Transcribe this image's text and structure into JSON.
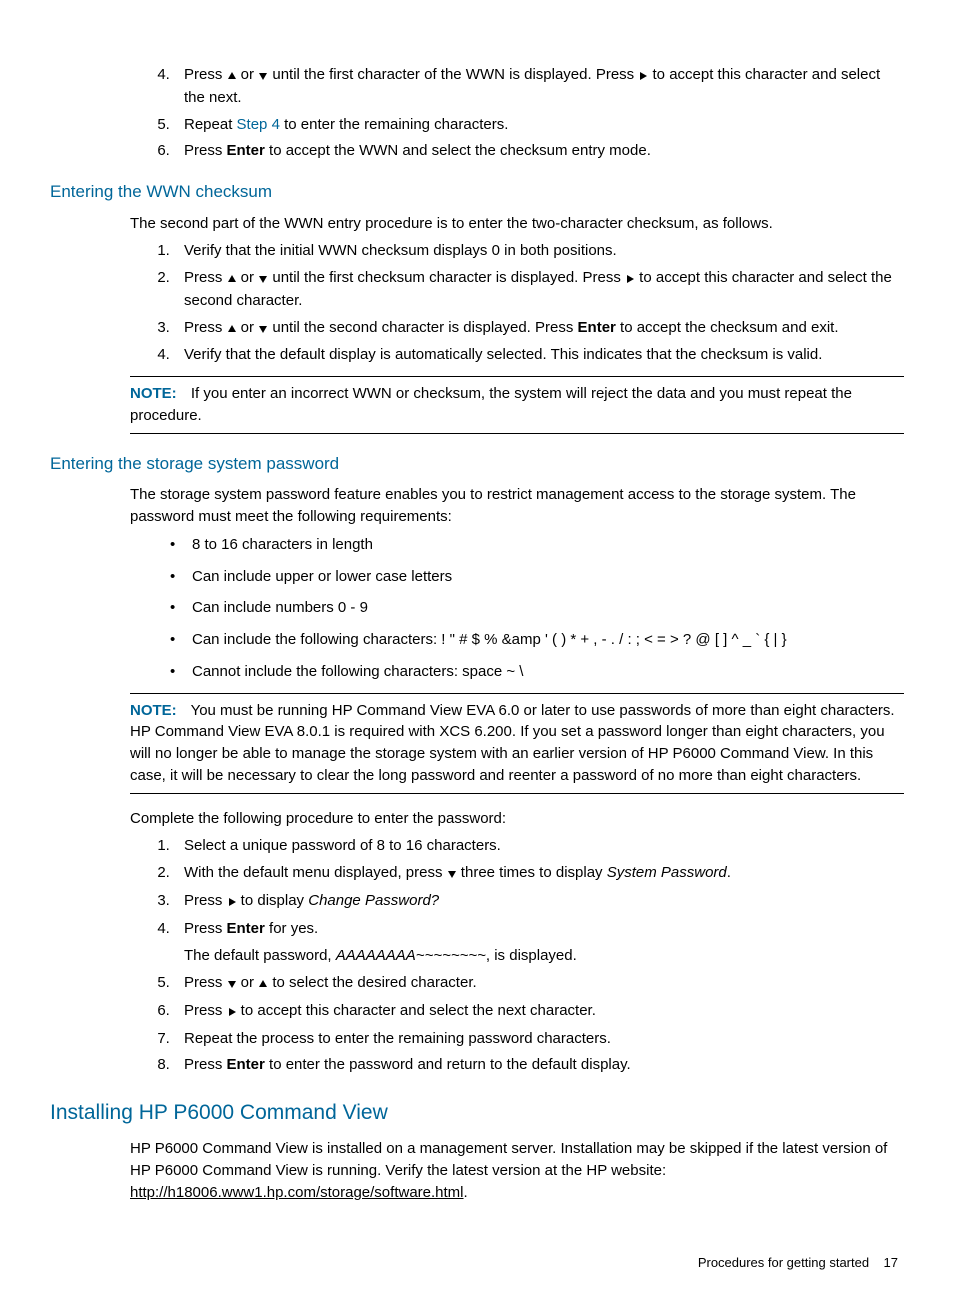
{
  "colors": {
    "heading": "#006699",
    "text": "#000000",
    "background": "#ffffff"
  },
  "icons": {
    "up": "▲",
    "down": "▼",
    "right": "▶"
  },
  "top_steps": {
    "start": 4,
    "items": [
      {
        "parts": [
          {
            "t": "Press "
          },
          {
            "icon": "up"
          },
          {
            "t": " or "
          },
          {
            "icon": "down"
          },
          {
            "t": " until the first character of the WWN is displayed. Press "
          },
          {
            "icon": "right"
          },
          {
            "t": " to accept this character and select the next."
          }
        ]
      },
      {
        "parts": [
          {
            "t": "Repeat "
          },
          {
            "link": "Step 4",
            "cls": "step-link"
          },
          {
            "t": " to enter the remaining characters."
          }
        ]
      },
      {
        "parts": [
          {
            "t": "Press "
          },
          {
            "b": "Enter"
          },
          {
            "t": " to accept the WWN and select the checksum entry mode."
          }
        ]
      }
    ]
  },
  "wwn": {
    "heading": "Entering the WWN checksum",
    "intro": "The second part of the WWN entry procedure is to enter the two-character checksum, as follows.",
    "steps": [
      {
        "parts": [
          {
            "t": "Verify that the initial WWN checksum displays 0 in both positions."
          }
        ]
      },
      {
        "parts": [
          {
            "t": "Press "
          },
          {
            "icon": "up"
          },
          {
            "t": " or "
          },
          {
            "icon": "down"
          },
          {
            "t": " until the first checksum character is displayed. Press "
          },
          {
            "icon": "right"
          },
          {
            "t": " to accept this character and select the second character."
          }
        ]
      },
      {
        "parts": [
          {
            "t": "Press "
          },
          {
            "icon": "up"
          },
          {
            "t": " or "
          },
          {
            "icon": "down"
          },
          {
            "t": " until the second character is displayed. Press "
          },
          {
            "b": "Enter"
          },
          {
            "t": " to accept the checksum and exit."
          }
        ]
      },
      {
        "parts": [
          {
            "t": "Verify that the default display is automatically selected. This indicates that the checksum is valid."
          }
        ]
      }
    ],
    "note": "If you enter an incorrect WWN or checksum, the system will reject the data and you must repeat the procedure."
  },
  "pwd": {
    "heading": "Entering the storage system password",
    "intro": "The storage system password feature enables you to restrict management access to the storage system. The password must meet the following requirements:",
    "bullets": [
      "8 to 16 characters in length",
      "Can include upper or lower case letters",
      "Can include numbers 0 - 9",
      "Can include the following characters: ! \" # $ % &amp ' ( ) * + , - . / : ; < = > ? @ [ ] ^ _ ` { | }",
      "Cannot include the following characters: space ~ \\"
    ],
    "note": "You must be running HP Command View EVA 6.0 or later to use passwords of more than eight characters. HP Command View EVA 8.0.1 is required with XCS 6.200. If you set a password longer than eight characters, you will no longer be able to manage the storage system with an earlier version of HP P6000 Command View. In this case, it will be necessary to clear the long password and reenter a password of no more than eight characters.",
    "proc_intro": "Complete the following procedure to enter the password:",
    "steps": [
      {
        "parts": [
          {
            "t": "Select a unique password of 8 to 16 characters."
          }
        ]
      },
      {
        "parts": [
          {
            "t": "With the default menu displayed, press "
          },
          {
            "icon": "down"
          },
          {
            "t": " three times to display "
          },
          {
            "i": "System Password"
          },
          {
            "t": "."
          }
        ]
      },
      {
        "parts": [
          {
            "t": "Press "
          },
          {
            "icon": "right"
          },
          {
            "t": " to display "
          },
          {
            "i": "Change Password?"
          }
        ]
      },
      {
        "parts": [
          {
            "t": "Press "
          },
          {
            "b": "Enter"
          },
          {
            "t": " for yes."
          }
        ],
        "after": [
          {
            "t": "The default password, "
          },
          {
            "i": "AAAAAAAA~~~~~~~~"
          },
          {
            "t": ", is displayed."
          }
        ]
      },
      {
        "parts": [
          {
            "t": "Press "
          },
          {
            "icon": "down"
          },
          {
            "t": " or "
          },
          {
            "icon": "up"
          },
          {
            "t": " to select the desired character."
          }
        ]
      },
      {
        "parts": [
          {
            "t": "Press "
          },
          {
            "icon": "right"
          },
          {
            "t": " to accept this character and select the next character."
          }
        ]
      },
      {
        "parts": [
          {
            "t": "Repeat the process to enter the remaining password characters."
          }
        ]
      },
      {
        "parts": [
          {
            "t": "Press "
          },
          {
            "b": "Enter"
          },
          {
            "t": " to enter the password and return to the default display."
          }
        ]
      }
    ]
  },
  "install": {
    "heading": "Installing HP P6000 Command View",
    "text_before": "HP P6000 Command View is installed on a management server. Installation may be skipped if the latest version of HP P6000 Command View is running. Verify the latest version at the HP website: ",
    "url": "http://h18006.www1.hp.com/storage/software.html",
    "text_after": "."
  },
  "note_label": "NOTE:",
  "footer": {
    "text": "Procedures for getting started",
    "page": "17"
  }
}
